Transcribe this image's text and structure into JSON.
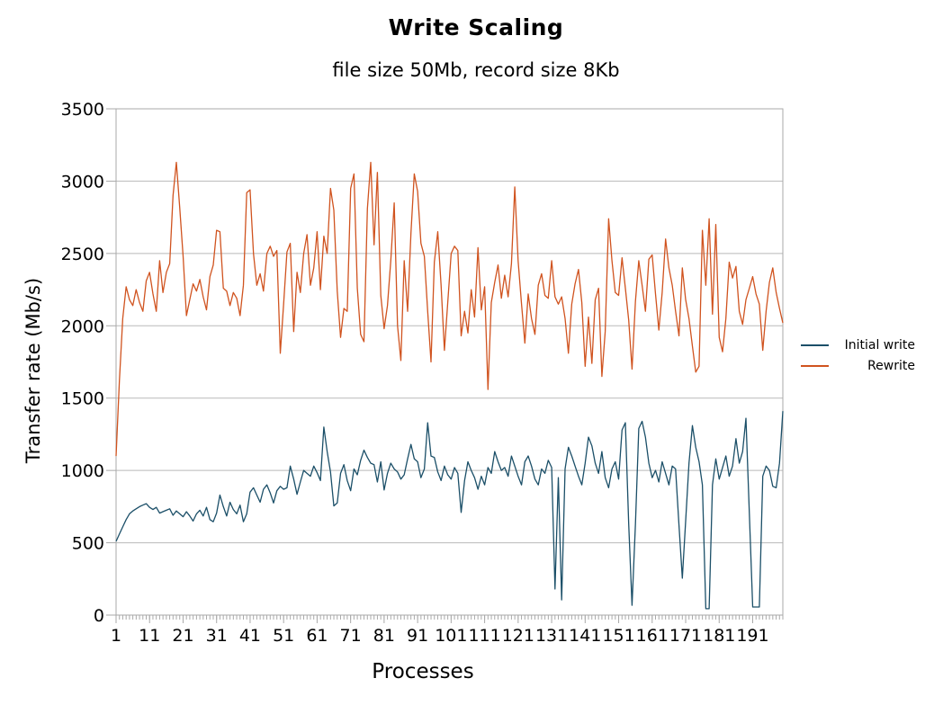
{
  "title": "Write Scaling",
  "subtitle": "file size 50Mb, record size 8Kb",
  "colors": {
    "initial_write": "#1b4f68",
    "rewrite": "#d0531f",
    "grid": "#b9b9b9",
    "axis": "#a9a9a9",
    "text": "#000000",
    "background": "#ffffff"
  },
  "chart_data": {
    "type": "line",
    "title": "Write Scaling",
    "subtitle": "file size 50Mb, record size 8Kb",
    "xlabel": "Processes",
    "ylabel": "Transfer rate (Mb/s)",
    "xlim": [
      1,
      200
    ],
    "ylim": [
      0,
      3500
    ],
    "x_start": 1,
    "x_step": 1,
    "x_ticks": [
      1,
      11,
      21,
      31,
      41,
      51,
      61,
      71,
      81,
      91,
      101,
      111,
      121,
      131,
      141,
      151,
      161,
      171,
      181,
      191
    ],
    "y_ticks": [
      0,
      500,
      1000,
      1500,
      2000,
      2500,
      3000,
      3500
    ],
    "grid": "horizontal",
    "legend_position": "right",
    "series": [
      {
        "name": "Initial write",
        "color": "#1b4f68",
        "values": [
          510,
          560,
          610,
          660,
          700,
          720,
          735,
          750,
          760,
          770,
          745,
          730,
          745,
          705,
          715,
          725,
          735,
          690,
          720,
          700,
          680,
          715,
          685,
          650,
          700,
          725,
          685,
          745,
          660,
          645,
          705,
          830,
          750,
          685,
          780,
          730,
          700,
          760,
          645,
          700,
          850,
          880,
          830,
          780,
          870,
          900,
          845,
          775,
          860,
          890,
          870,
          880,
          1030,
          940,
          835,
          920,
          1000,
          980,
          960,
          1030,
          985,
          930,
          1300,
          1130,
          990,
          755,
          775,
          980,
          1040,
          930,
          860,
          1010,
          970,
          1070,
          1140,
          1090,
          1050,
          1040,
          920,
          1060,
          865,
          980,
          1050,
          1010,
          990,
          940,
          970,
          1080,
          1180,
          1080,
          1060,
          950,
          1010,
          1330,
          1100,
          1090,
          990,
          930,
          1030,
          970,
          940,
          1020,
          980,
          710,
          930,
          1060,
          1000,
          950,
          870,
          960,
          900,
          1020,
          980,
          1130,
          1060,
          1000,
          1020,
          960,
          1100,
          1030,
          960,
          900,
          1060,
          1100,
          1030,
          940,
          900,
          1010,
          980,
          1070,
          1020,
          180,
          950,
          105,
          1010,
          1160,
          1100,
          1030,
          960,
          900,
          1050,
          1230,
          1170,
          1050,
          980,
          1130,
          950,
          880,
          1010,
          1060,
          940,
          1280,
          1330,
          630,
          68,
          630,
          1290,
          1340,
          1230,
          1050,
          950,
          1000,
          920,
          1060,
          980,
          900,
          1030,
          1010,
          620,
          255,
          650,
          1050,
          1310,
          1160,
          1060,
          900,
          44,
          44,
          900,
          1080,
          940,
          1020,
          1100,
          960,
          1030,
          1220,
          1050,
          1130,
          1360,
          700,
          56,
          56,
          56,
          960,
          1030,
          1000,
          890,
          880,
          1050,
          1410
        ]
      },
      {
        "name": "Rewrite",
        "color": "#d0531f",
        "values": [
          1100,
          1620,
          2050,
          2270,
          2180,
          2140,
          2250,
          2160,
          2100,
          2310,
          2370,
          2220,
          2100,
          2450,
          2230,
          2370,
          2430,
          2900,
          3130,
          2820,
          2480,
          2070,
          2180,
          2290,
          2240,
          2320,
          2200,
          2110,
          2340,
          2420,
          2660,
          2650,
          2260,
          2240,
          2140,
          2230,
          2190,
          2070,
          2280,
          2920,
          2940,
          2500,
          2280,
          2360,
          2240,
          2500,
          2550,
          2480,
          2520,
          1810,
          2150,
          2510,
          2570,
          1960,
          2370,
          2230,
          2500,
          2630,
          2280,
          2400,
          2650,
          2250,
          2620,
          2500,
          2950,
          2800,
          2240,
          1920,
          2120,
          2100,
          2950,
          3050,
          2260,
          1940,
          1890,
          2810,
          3130,
          2560,
          3060,
          2210,
          1980,
          2140,
          2450,
          2850,
          2000,
          1760,
          2450,
          2100,
          2640,
          3050,
          2930,
          2570,
          2480,
          2100,
          1750,
          2440,
          2650,
          2280,
          1830,
          2160,
          2500,
          2550,
          2520,
          1930,
          2100,
          1950,
          2250,
          2060,
          2540,
          2110,
          2270,
          1560,
          2160,
          2300,
          2420,
          2190,
          2350,
          2200,
          2430,
          2960,
          2450,
          2150,
          1880,
          2220,
          2050,
          1940,
          2280,
          2360,
          2210,
          2190,
          2450,
          2200,
          2150,
          2200,
          2050,
          1810,
          2150,
          2290,
          2390,
          2160,
          1720,
          2060,
          1740,
          2180,
          2260,
          1650,
          1960,
          2740,
          2450,
          2230,
          2210,
          2470,
          2260,
          2040,
          1700,
          2170,
          2450,
          2280,
          2100,
          2460,
          2490,
          2220,
          1970,
          2230,
          2600,
          2400,
          2280,
          2100,
          1930,
          2400,
          2180,
          2050,
          1860,
          1680,
          1720,
          2660,
          2280,
          2740,
          2080,
          2700,
          1920,
          1820,
          2050,
          2440,
          2330,
          2410,
          2100,
          2010,
          2180,
          2260,
          2340,
          2220,
          2150,
          1830,
          2100,
          2300,
          2400,
          2230,
          2120,
          2020
        ]
      }
    ]
  }
}
